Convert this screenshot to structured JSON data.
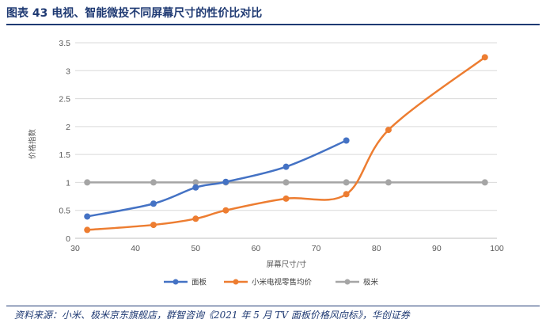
{
  "figure": {
    "title": "图表 43   电视、智能微投不同屏幕尺寸的性价比对比",
    "source": "资料来源：小米、极米京东旗舰店，群智咨询《2021 年 5 月 TV 面板价格风向标》，华创证券"
  },
  "chart_data": {
    "type": "line",
    "title": "",
    "xlabel": "屏幕尺寸/寸",
    "ylabel": "价格指数",
    "xlim": [
      30,
      100
    ],
    "ylim": [
      0,
      3.5
    ],
    "xticks": [
      30,
      40,
      50,
      60,
      70,
      80,
      90,
      100
    ],
    "yticks": [
      0,
      0.5,
      1,
      1.5,
      2,
      2.5,
      3,
      3.5
    ],
    "grid": "horizontal",
    "legend_position": "bottom",
    "series": [
      {
        "name": "面板",
        "color": "#4472c4",
        "x": [
          32,
          43,
          50,
          55,
          65,
          75
        ],
        "y": [
          0.39,
          0.62,
          0.91,
          1.01,
          1.28,
          1.75
        ]
      },
      {
        "name": "小米电视零售均价",
        "color": "#ed7d31",
        "x": [
          32,
          43,
          50,
          55,
          65,
          75,
          82,
          98
        ],
        "y": [
          0.15,
          0.24,
          0.35,
          0.5,
          0.71,
          0.79,
          1.94,
          3.24
        ]
      },
      {
        "name": "极米",
        "color": "#a5a5a5",
        "x": [
          32,
          43,
          50,
          55,
          65,
          75,
          82,
          98
        ],
        "y": [
          1,
          1,
          1,
          1,
          1,
          1,
          1,
          1
        ]
      }
    ]
  }
}
